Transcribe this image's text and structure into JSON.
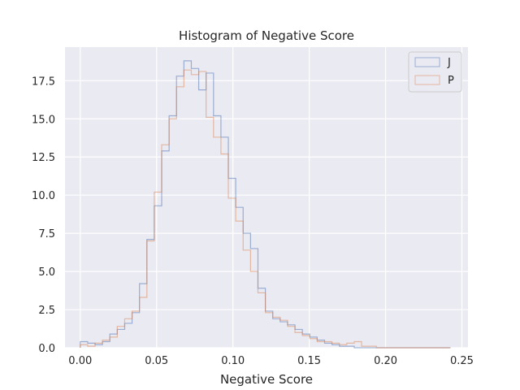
{
  "chart_data": {
    "type": "histogram",
    "title": "Histogram of Negative Score",
    "xlabel": "Negative Score",
    "ylabel": "",
    "xlim": [
      -0.01,
      0.254
    ],
    "ylim": [
      0,
      19.7
    ],
    "xticks": [
      0.0,
      0.05,
      0.1,
      0.15,
      0.2,
      0.25
    ],
    "xtick_labels": [
      "0.00",
      "0.05",
      "0.10",
      "0.15",
      "0.20",
      "0.25"
    ],
    "yticks": [
      0.0,
      2.5,
      5.0,
      7.5,
      10.0,
      12.5,
      15.0,
      17.5
    ],
    "ytick_labels": [
      "0.0",
      "2.5",
      "5.0",
      "7.5",
      "10.0",
      "12.5",
      "15.0",
      "17.5"
    ],
    "grid": true,
    "legend_position": "top-right",
    "series": [
      {
        "name": "J",
        "color": "#4c72b0",
        "bin_start": 0.0,
        "bin_width": 0.00485,
        "values": [
          0.4,
          0.3,
          0.2,
          0.4,
          0.9,
          1.2,
          1.6,
          2.3,
          4.2,
          7.1,
          9.3,
          12.9,
          15.2,
          17.8,
          18.8,
          18.3,
          16.9,
          18.0,
          15.2,
          13.8,
          11.1,
          9.2,
          7.5,
          6.5,
          3.9,
          2.4,
          1.9,
          1.7,
          1.5,
          1.2,
          0.9,
          0.7,
          0.5,
          0.3,
          0.2,
          0.1,
          0.1,
          0.0,
          0.0,
          0.0,
          0.0,
          0.0,
          0.0,
          0.0,
          0.0,
          0.0,
          0.0,
          0.0,
          0.0,
          0.0
        ]
      },
      {
        "name": "P",
        "color": "#dd8452",
        "bin_start": 0.0,
        "bin_width": 0.00485,
        "values": [
          0.2,
          0.1,
          0.3,
          0.5,
          0.7,
          1.4,
          1.9,
          2.4,
          3.3,
          7.0,
          10.2,
          13.3,
          15.0,
          17.1,
          18.2,
          17.9,
          18.1,
          15.1,
          13.8,
          12.7,
          9.8,
          8.3,
          6.4,
          5.0,
          3.6,
          2.3,
          2.0,
          1.8,
          1.4,
          1.0,
          0.8,
          0.6,
          0.4,
          0.4,
          0.3,
          0.2,
          0.3,
          0.4,
          0.1,
          0.1,
          0.0,
          0.0,
          0.0,
          0.0,
          0.0,
          0.0,
          0.0,
          0.0,
          0.0,
          0.0
        ]
      }
    ]
  }
}
